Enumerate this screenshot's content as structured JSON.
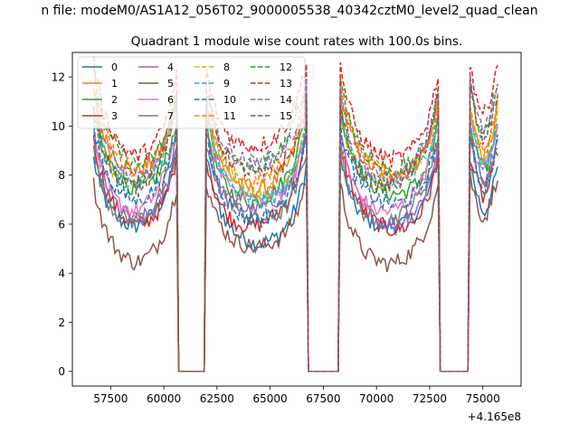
{
  "suptitle": "n file: modeM0/AS1A12_056T02_9000005538_40342cztM0_level2_quad_clean",
  "chart_data": {
    "type": "line",
    "title": "Quadrant 1 module wise count rates with 100.0s bins.",
    "xlabel": "",
    "ylabel": "",
    "x_offset_label": "+4.165e8",
    "xlim": [
      55700,
      76800
    ],
    "ylim": [
      -0.6,
      13.0
    ],
    "x_ticks": [
      57500,
      60000,
      62500,
      65000,
      67500,
      70000,
      72500,
      75000
    ],
    "x_tick_labels": [
      "57500",
      "60000",
      "62500",
      "65000",
      "67500",
      "70000",
      "72500",
      "75000"
    ],
    "y_ticks": [
      0,
      2,
      4,
      6,
      8,
      10,
      12
    ],
    "y_tick_labels": [
      "0",
      "2",
      "4",
      "6",
      "8",
      "10",
      "12"
    ],
    "grid": false,
    "legend_position": "top-left",
    "legend_columns": 4,
    "x_data_range": [
      56700,
      75700
    ],
    "gaps": [
      [
        60600,
        62000
      ],
      [
        66700,
        68300
      ],
      [
        72900,
        74400
      ]
    ],
    "series": [
      {
        "name": "0",
        "color": "#1f77b4",
        "dash": "solid",
        "level": 5.4
      },
      {
        "name": "1",
        "color": "#ff7f0e",
        "dash": "solid",
        "level": 7.6
      },
      {
        "name": "2",
        "color": "#2ca02c",
        "dash": "solid",
        "level": 7.0
      },
      {
        "name": "3",
        "color": "#d62728",
        "dash": "solid",
        "level": 5.8
      },
      {
        "name": "4",
        "color": "#9467bd",
        "dash": "solid",
        "level": 6.2
      },
      {
        "name": "5",
        "color": "#8c564b",
        "dash": "solid",
        "level": 4.6
      },
      {
        "name": "6",
        "color": "#e377c2",
        "dash": "solid",
        "level": 6.6
      },
      {
        "name": "7",
        "color": "#7f7f7f",
        "dash": "solid",
        "level": 6.0
      },
      {
        "name": "8",
        "color": "#bcbd22",
        "dash": "dashed",
        "level": 7.3
      },
      {
        "name": "9",
        "color": "#17becf",
        "dash": "dashed",
        "level": 7.1
      },
      {
        "name": "10",
        "color": "#1f77b4",
        "dash": "dashed",
        "level": 6.4
      },
      {
        "name": "11",
        "color": "#ff7f0e",
        "dash": "dashed",
        "level": 7.8
      },
      {
        "name": "12",
        "color": "#2ca02c",
        "dash": "dashed",
        "level": 8.2
      },
      {
        "name": "13",
        "color": "#d62728",
        "dash": "dashed",
        "level": 8.8
      },
      {
        "name": "14",
        "color": "#9467bd",
        "dash": "dashed",
        "level": 8.0
      },
      {
        "name": "15",
        "color": "#8c564b",
        "dash": "dashed",
        "level": 7.6
      }
    ]
  }
}
